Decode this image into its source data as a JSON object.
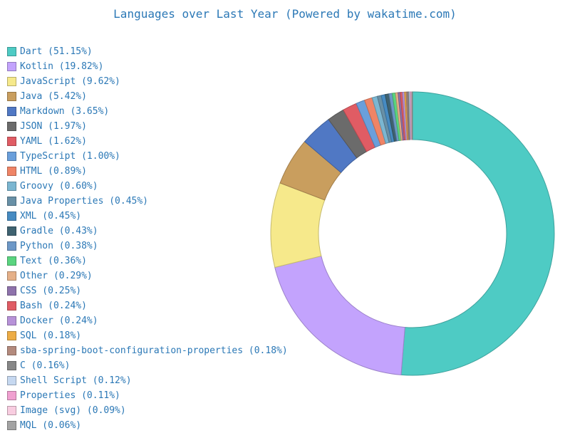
{
  "chart_data": {
    "type": "pie",
    "title": "Languages over Last Year (Powered by wakatime.com)",
    "legend_position": "left",
    "slices": [
      {
        "label": "Dart (51.15%)",
        "value": 51.15,
        "color": "#4ecbc4"
      },
      {
        "label": "Kotlin (19.82%)",
        "value": 19.82,
        "color": "#c3a3fd"
      },
      {
        "label": "JavaScript (9.62%)",
        "value": 9.62,
        "color": "#f6e98b"
      },
      {
        "label": "Java (5.42%)",
        "value": 5.42,
        "color": "#c99e5e"
      },
      {
        "label": "Markdown (3.65%)",
        "value": 3.65,
        "color": "#5078c4"
      },
      {
        "label": "JSON (1.97%)",
        "value": 1.97,
        "color": "#6b6b6b"
      },
      {
        "label": "YAML (1.62%)",
        "value": 1.62,
        "color": "#e05c64"
      },
      {
        "label": "TypeScript (1.00%)",
        "value": 1.0,
        "color": "#6a9fdb"
      },
      {
        "label": "HTML (0.89%)",
        "value": 0.89,
        "color": "#ef8466"
      },
      {
        "label": "Groovy (0.60%)",
        "value": 0.6,
        "color": "#7bb6d1"
      },
      {
        "label": "Java Properties (0.45%)",
        "value": 0.45,
        "color": "#6890a6"
      },
      {
        "label": "XML (0.45%)",
        "value": 0.45,
        "color": "#468bc2"
      },
      {
        "label": "Gradle (0.43%)",
        "value": 0.43,
        "color": "#3f6270"
      },
      {
        "label": "Python (0.38%)",
        "value": 0.38,
        "color": "#6d98c7"
      },
      {
        "label": "Text (0.36%)",
        "value": 0.36,
        "color": "#5ad47f"
      },
      {
        "label": "Other (0.29%)",
        "value": 0.29,
        "color": "#e5b088"
      },
      {
        "label": "CSS (0.25%)",
        "value": 0.25,
        "color": "#8e72ab"
      },
      {
        "label": "Bash (0.24%)",
        "value": 0.24,
        "color": "#e05c64"
      },
      {
        "label": "Docker (0.24%)",
        "value": 0.24,
        "color": "#b792d8"
      },
      {
        "label": "SQL (0.18%)",
        "value": 0.18,
        "color": "#edac45"
      },
      {
        "label": "sba-spring-boot-configuration-properties (0.18%)",
        "value": 0.18,
        "color": "#b38a7d"
      },
      {
        "label": "C (0.16%)",
        "value": 0.16,
        "color": "#878787"
      },
      {
        "label": "Shell Script (0.12%)",
        "value": 0.12,
        "color": "#c6d8f0"
      },
      {
        "label": "Properties (0.11%)",
        "value": 0.11,
        "color": "#f0a0d0"
      },
      {
        "label": "Image (svg) (0.09%)",
        "value": 0.09,
        "color": "#f8cde0"
      },
      {
        "label": "MQL (0.06%)",
        "value": 0.06,
        "color": "#a3a3a3"
      }
    ]
  }
}
